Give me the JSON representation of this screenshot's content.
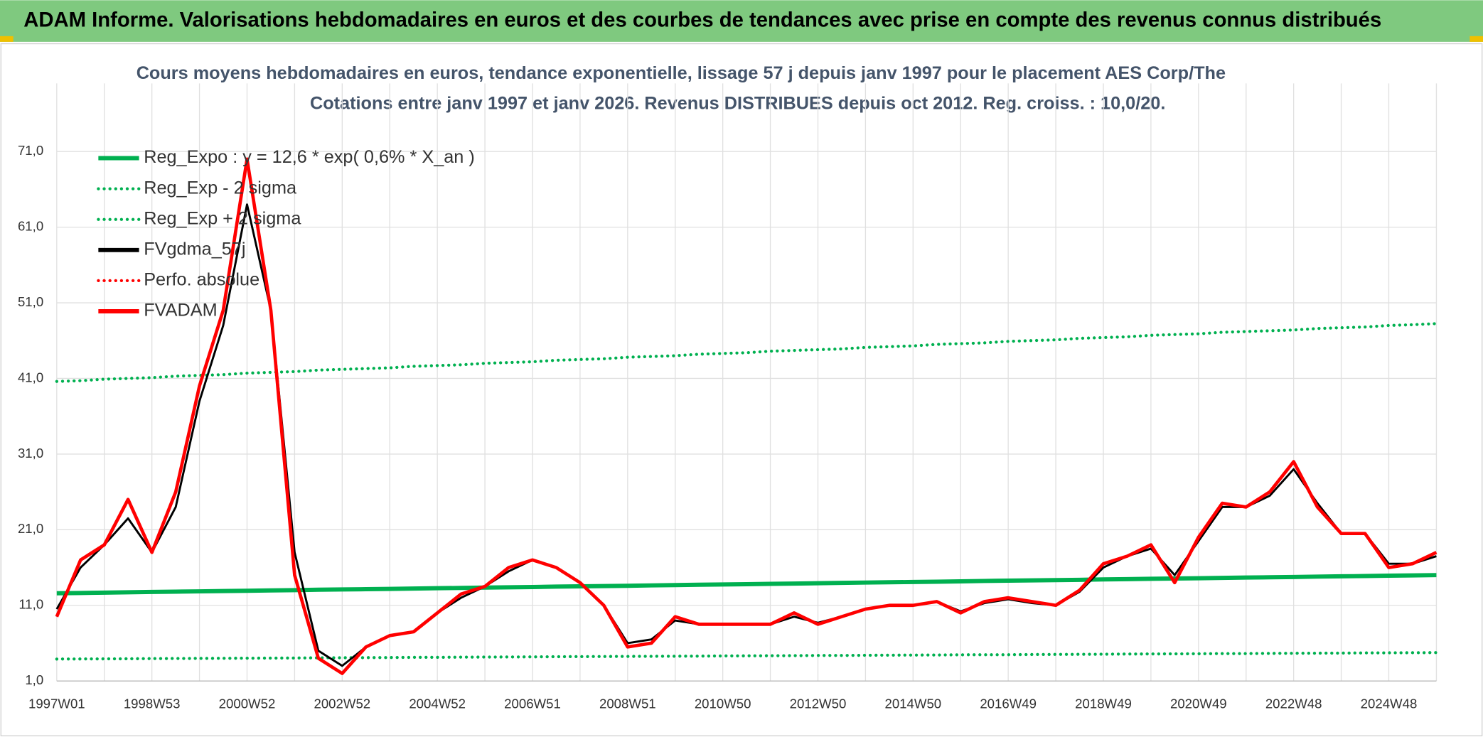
{
  "header": {
    "title": "ADAM Informe. Valorisations hebdomadaires en euros et des courbes de tendances avec prise en compte des revenus connus distribués"
  },
  "chart_data": {
    "type": "line",
    "title": "Cours moyens hebdomadaires en euros, tendance exponentielle, lissage 57 j depuis janv 1997 pour le placement AES Corp/The",
    "subtitle": "Cotations entre janv 1997 et janv 2026. Revenus DISTRIBUES depuis oct 2012. Reg. croiss. : 10,0/20.",
    "categories": [
      "1997W01",
      null,
      null,
      null,
      "1998W53",
      null,
      null,
      null,
      "2000W52",
      null,
      null,
      null,
      "2002W52",
      null,
      null,
      null,
      "2004W52",
      null,
      null,
      null,
      "2006W51",
      null,
      null,
      null,
      "2008W51",
      null,
      null,
      null,
      "2010W50",
      null,
      null,
      null,
      "2012W50",
      null,
      null,
      null,
      "2014W50",
      null,
      null,
      null,
      "2016W49",
      null,
      null,
      null,
      "2018W49",
      null,
      null,
      null,
      "2020W49",
      null,
      null,
      null,
      "2022W48",
      null,
      null,
      null,
      "2024W48",
      null,
      null
    ],
    "ylim": [
      1,
      80
    ],
    "yticks": [
      {
        "value": 1,
        "label": "1,0"
      },
      {
        "value": 11,
        "label": "11,0"
      },
      {
        "value": 21,
        "label": "21,0"
      },
      {
        "value": 31,
        "label": "31,0"
      },
      {
        "value": 41,
        "label": "41,0"
      },
      {
        "value": 51,
        "label": "51,0"
      },
      {
        "value": 61,
        "label": "61,0"
      },
      {
        "value": 71,
        "label": "71,0"
      }
    ],
    "grid": true,
    "series": [
      {
        "name": "Reg_Expo : y = 12,6 * exp( 0,6% *  X_an )",
        "color": "#00b050",
        "style": "solid",
        "values": [
          12.6,
          12.64,
          12.68,
          12.72,
          12.77,
          12.81,
          12.85,
          12.89,
          12.93,
          12.97,
          13.01,
          13.06,
          13.1,
          13.14,
          13.18,
          13.22,
          13.26,
          13.3,
          13.35,
          13.39,
          13.43,
          13.47,
          13.51,
          13.55,
          13.59,
          13.64,
          13.68,
          13.72,
          13.76,
          13.8,
          13.84,
          13.88,
          13.93,
          13.97,
          14.01,
          14.05,
          14.09,
          14.13,
          14.17,
          14.22,
          14.26,
          14.3,
          14.34,
          14.38,
          14.42,
          14.46,
          14.51,
          14.55,
          14.59,
          14.63,
          14.67,
          14.71,
          14.75,
          14.8,
          14.84,
          14.88,
          14.92,
          14.96,
          15.0
        ]
      },
      {
        "name": "Reg_Exp - 2 sigma",
        "color": "#00b050",
        "style": "dotted",
        "values": [
          3.9,
          3.91,
          3.93,
          3.94,
          3.96,
          3.97,
          3.99,
          4.0,
          4.01,
          4.03,
          4.04,
          4.06,
          4.07,
          4.09,
          4.1,
          4.12,
          4.13,
          4.15,
          4.16,
          4.18,
          4.19,
          4.21,
          4.22,
          4.24,
          4.25,
          4.26,
          4.28,
          4.29,
          4.31,
          4.32,
          4.34,
          4.35,
          4.37,
          4.38,
          4.4,
          4.41,
          4.43,
          4.44,
          4.46,
          4.47,
          4.48,
          4.5,
          4.51,
          4.53,
          4.54,
          4.56,
          4.57,
          4.59,
          4.6,
          4.62,
          4.63,
          4.65,
          4.66,
          4.68,
          4.69,
          4.71,
          4.72,
          4.74,
          4.75
        ]
      },
      {
        "name": "Reg_Exp + 2 sigma",
        "color": "#00b050",
        "style": "dotted",
        "values": [
          40.6,
          40.7,
          40.9,
          41.0,
          41.1,
          41.3,
          41.4,
          41.5,
          41.7,
          41.8,
          41.9,
          42.1,
          42.2,
          42.3,
          42.4,
          42.6,
          42.7,
          42.8,
          43.0,
          43.1,
          43.2,
          43.4,
          43.5,
          43.6,
          43.8,
          43.9,
          44.0,
          44.2,
          44.3,
          44.4,
          44.6,
          44.7,
          44.8,
          44.9,
          45.1,
          45.2,
          45.3,
          45.5,
          45.6,
          45.7,
          45.9,
          46.0,
          46.1,
          46.3,
          46.4,
          46.5,
          46.7,
          46.8,
          46.9,
          47.1,
          47.2,
          47.3,
          47.4,
          47.6,
          47.7,
          47.8,
          48.0,
          48.1,
          48.25
        ]
      },
      {
        "name": "FVgdma_57j",
        "color": "#000000",
        "style": "solid",
        "values": [
          10.5,
          16,
          19,
          22.5,
          18,
          24,
          38,
          48,
          64,
          50,
          18,
          5,
          3,
          5.5,
          7,
          7.5,
          10,
          12,
          13.5,
          15.5,
          17,
          16,
          14,
          11,
          6,
          6.5,
          9,
          8.5,
          8.5,
          8.5,
          8.5,
          9.5,
          8.7,
          9.5,
          10.5,
          11,
          11,
          11.5,
          10.2,
          11.3,
          11.8,
          11.3,
          11,
          12.8,
          16,
          17.5,
          18.5,
          15,
          19.5,
          24,
          24,
          25.5,
          29,
          24.5,
          20.5,
          20.5,
          16.5,
          16.5,
          17.5
        ]
      },
      {
        "name": "Perfo. absolue",
        "color": "#ff0000",
        "style": "dotted",
        "values": [
          null,
          null,
          null,
          null,
          null,
          null,
          null,
          null,
          null,
          null,
          null,
          null,
          null,
          null,
          null,
          null,
          null,
          null,
          null,
          null,
          null,
          null,
          null,
          null,
          null,
          null,
          null,
          null,
          null,
          null,
          null,
          null,
          null,
          null,
          null,
          null,
          null,
          null,
          null,
          null,
          null,
          null,
          null,
          null,
          null,
          null,
          null,
          null,
          null,
          null,
          null,
          null,
          null,
          null,
          null,
          null,
          null,
          null,
          null
        ]
      },
      {
        "name": "FVADAM",
        "color": "#ff0000",
        "style": "solid",
        "values": [
          9.5,
          17,
          19,
          25,
          18,
          26,
          40,
          50,
          70,
          50,
          15,
          4,
          2,
          5.5,
          7,
          7.5,
          10,
          12.5,
          13.5,
          16,
          17,
          16,
          14,
          11,
          5.5,
          6,
          9.5,
          8.5,
          8.5,
          8.5,
          8.5,
          10,
          8.5,
          9.5,
          10.5,
          11,
          11,
          11.5,
          10,
          11.5,
          12,
          11.5,
          11,
          13,
          16.5,
          17.5,
          19,
          14,
          20,
          24.5,
          24,
          26,
          30,
          24,
          20.5,
          20.5,
          16,
          16.5,
          18
        ]
      }
    ]
  }
}
